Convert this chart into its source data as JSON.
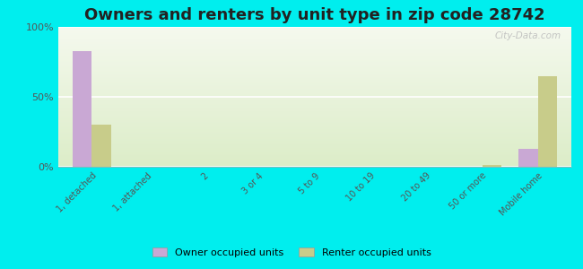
{
  "title": "Owners and renters by unit type in zip code 28742",
  "categories": [
    "1, detached",
    "1, attached",
    "2",
    "3 or 4",
    "5 to 9",
    "10 to 19",
    "20 to 49",
    "50 or more",
    "Mobile home"
  ],
  "owner_values": [
    83,
    0,
    0,
    0,
    0,
    0,
    0,
    0,
    13
  ],
  "renter_values": [
    30,
    0,
    0,
    0,
    0,
    0,
    0,
    1,
    65
  ],
  "owner_color": "#c9a8d4",
  "renter_color": "#c8cc8a",
  "background_color": "#00eeee",
  "ylim": [
    0,
    100
  ],
  "yticks": [
    0,
    50,
    100
  ],
  "ytick_labels": [
    "0%",
    "50%",
    "100%"
  ],
  "bar_width": 0.35,
  "legend_owner": "Owner occupied units",
  "legend_renter": "Renter occupied units",
  "title_fontsize": 13,
  "watermark": "City-Data.com"
}
